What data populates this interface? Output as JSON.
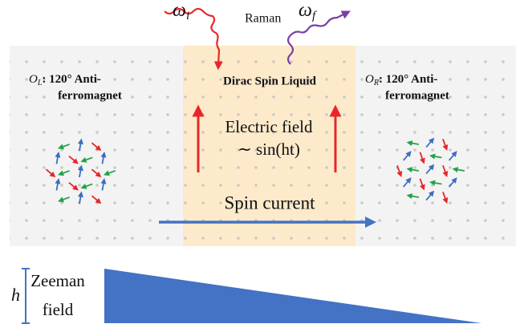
{
  "raman": {
    "label": "Raman",
    "omega_in": {
      "symbol": "ω",
      "sub": "i"
    },
    "omega_out": {
      "symbol": "ω",
      "sub": "f"
    }
  },
  "left_region": {
    "symbol": "O",
    "sub": "L",
    "line1": ": 120° Anti-",
    "line2": "ferromagnet"
  },
  "center_region": {
    "title": "Dirac Spin Liquid",
    "field_line1": "Electric field",
    "field_line2": "∼ sin(ht)"
  },
  "right_region": {
    "symbol": "O",
    "sub": "R",
    "line1": ": 120° Anti-",
    "line2": "ferromagnet"
  },
  "spin_current": "Spin current",
  "zeeman": {
    "symbol": "h",
    "line1": "Zeeman",
    "line2": "field"
  }
}
